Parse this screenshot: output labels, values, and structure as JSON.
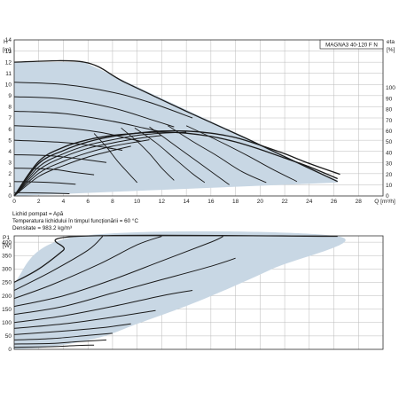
{
  "model_label": "MAGNA3 40-120 F N",
  "notes": [
    "Lichid pompat = Apă",
    "Temperatura lichidului în timpul funcționării = 60 °C",
    "Densitate = 983.2 kg/m³"
  ],
  "colors": {
    "fill": "#c8d7e4",
    "curve": "#1a1a1a",
    "grid": "#b9b9b9",
    "frame": "#333333"
  },
  "chart_data": [
    {
      "type": "line",
      "ylabel_lines": [
        "H",
        "[m]"
      ],
      "right_label_lines": [
        "eta",
        "[%]"
      ],
      "xlabel": "Q [m³/h]",
      "xlim": [
        0,
        28
      ],
      "xticks": [
        0,
        2,
        4,
        6,
        8,
        10,
        12,
        14,
        16,
        18,
        20,
        22,
        24,
        26,
        28,
        30
      ],
      "ylim": [
        0,
        14
      ],
      "yticks": [
        0,
        1,
        2,
        3,
        4,
        5,
        6,
        7,
        8,
        9,
        10,
        11,
        12,
        13,
        14
      ],
      "eta_ticks": [
        0,
        10,
        20,
        30,
        40,
        50,
        60,
        70,
        80,
        90,
        100
      ],
      "operating_area": [
        [
          0,
          0
        ],
        [
          0,
          12
        ],
        [
          5.7,
          12
        ],
        [
          26.3,
          1.4
        ],
        [
          26.3,
          1.2
        ],
        [
          0,
          0
        ]
      ],
      "pump_curves": [
        {
          "points": [
            [
              0,
              12.0
            ],
            [
              5.7,
              12.0
            ],
            [
              9,
              10.2
            ],
            [
              14,
              7.6
            ],
            [
              18.8,
              5.2
            ],
            [
              23,
              3.0
            ],
            [
              26.3,
              1.3
            ]
          ]
        },
        {
          "points": [
            [
              0,
              10.2
            ],
            [
              4,
              10.0
            ],
            [
              8,
              9.3
            ],
            [
              11,
              8.4
            ],
            [
              14.5,
              7.0
            ]
          ]
        },
        {
          "points": [
            [
              0,
              8.9
            ],
            [
              4,
              8.7
            ],
            [
              8,
              7.9
            ],
            [
              11,
              6.9
            ],
            [
              13.0,
              6.2
            ]
          ]
        },
        {
          "points": [
            [
              0,
              7.6
            ],
            [
              4,
              7.4
            ],
            [
              8,
              6.7
            ],
            [
              10.5,
              6.1
            ],
            [
              11.8,
              5.8
            ]
          ]
        },
        {
          "points": [
            [
              0,
              6.3
            ],
            [
              4,
              6.1
            ],
            [
              7,
              5.7
            ],
            [
              9.5,
              5.1
            ],
            [
              10.3,
              4.9
            ]
          ]
        },
        {
          "points": [
            [
              0,
              5.0
            ],
            [
              4,
              4.8
            ],
            [
              6.5,
              4.5
            ],
            [
              8.8,
              4.1
            ]
          ]
        },
        {
          "points": [
            [
              0,
              3.7
            ],
            [
              3,
              3.6
            ],
            [
              5.5,
              3.3
            ],
            [
              7.5,
              3.0
            ]
          ]
        },
        {
          "points": [
            [
              0,
              2.5
            ],
            [
              3,
              2.4
            ],
            [
              5,
              2.1
            ],
            [
              6.5,
              1.9
            ]
          ]
        },
        {
          "points": [
            [
              0,
              1.3
            ],
            [
              3,
              1.2
            ],
            [
              5,
              1.05
            ]
          ]
        },
        {
          "points": [
            [
              0,
              0.3
            ],
            [
              3,
              0.25
            ],
            [
              4.5,
              0.2
            ]
          ]
        }
      ],
      "efficiency_curves": [
        {
          "points": [
            [
              0,
              0
            ],
            [
              2,
              32
            ],
            [
              4,
              45
            ],
            [
              6,
              52
            ],
            [
              8,
              56
            ],
            [
              10,
              58
            ],
            [
              12,
              59
            ],
            [
              14,
              58
            ],
            [
              16,
              55
            ],
            [
              18,
              50
            ],
            [
              20,
              43
            ],
            [
              22,
              35
            ],
            [
              24,
              27
            ],
            [
              26.3,
              16
            ]
          ]
        },
        {
          "points": [
            [
              0,
              0
            ],
            [
              2,
              30
            ],
            [
              4,
              42
            ],
            [
              6,
              50
            ],
            [
              8,
              55
            ],
            [
              10,
              58
            ],
            [
              12,
              60
            ],
            [
              14,
              60
            ],
            [
              16,
              58
            ],
            [
              18,
              54
            ],
            [
              20,
              47
            ],
            [
              22,
              39
            ],
            [
              24,
              30
            ],
            [
              26.5,
              20
            ]
          ]
        },
        {
          "points": [
            [
              0,
              0
            ],
            [
              2,
              27
            ],
            [
              4,
              39
            ],
            [
              6,
              47
            ],
            [
              8,
              52
            ],
            [
              10,
              56
            ],
            [
              12,
              58
            ],
            [
              14,
              59
            ]
          ]
        },
        {
          "points": [
            [
              0,
              0
            ],
            [
              2,
              24
            ],
            [
              4,
              36
            ],
            [
              6,
              44
            ],
            [
              8,
              49
            ],
            [
              10,
              53
            ],
            [
              12,
              56
            ]
          ]
        },
        {
          "points": [
            [
              0,
              0
            ],
            [
              2,
              21
            ],
            [
              4,
              32
            ],
            [
              6,
              40
            ],
            [
              8,
              46
            ],
            [
              10,
              50
            ],
            [
              11,
              52
            ]
          ]
        },
        {
          "points": [
            [
              0,
              0
            ],
            [
              2,
              18
            ],
            [
              4,
              28
            ],
            [
              6,
              36
            ],
            [
              8,
              42
            ],
            [
              9.5,
              46
            ]
          ]
        }
      ],
      "descending_curves": [
        {
          "points": [
            [
              8.7,
              6.1
            ],
            [
              10,
              4.9
            ],
            [
              11,
              3.8
            ],
            [
              12,
              2.5
            ],
            [
              13,
              1.4
            ]
          ]
        },
        {
          "points": [
            [
              9.8,
              6.1
            ],
            [
              11.5,
              4.8
            ],
            [
              13,
              3.4
            ],
            [
              14.5,
              2.0
            ],
            [
              15.5,
              1.2
            ]
          ]
        },
        {
          "points": [
            [
              11,
              6.2
            ],
            [
              13,
              4.6
            ],
            [
              15,
              3.0
            ],
            [
              16.5,
              1.8
            ],
            [
              17.5,
              1.0
            ]
          ]
        },
        {
          "points": [
            [
              12.5,
              6.3
            ],
            [
              14.5,
              4.9
            ],
            [
              16.5,
              3.6
            ],
            [
              18.5,
              2.2
            ],
            [
              20.5,
              1.2
            ]
          ]
        },
        {
          "points": [
            [
              14,
              6.3
            ],
            [
              16.5,
              5.0
            ],
            [
              19,
              3.6
            ],
            [
              21,
              2.4
            ],
            [
              23,
              1.3
            ]
          ]
        },
        {
          "points": [
            [
              6.5,
              5.6
            ],
            [
              7.5,
              4.4
            ],
            [
              8.5,
              3.0
            ],
            [
              9.5,
              1.8
            ],
            [
              10,
              1.2
            ]
          ]
        }
      ]
    },
    {
      "type": "line",
      "ylabel_lines": [
        "P1",
        "[W]"
      ],
      "xlim": [
        0,
        28
      ],
      "xticks": [
        0,
        2,
        4,
        6,
        8,
        10,
        12,
        14,
        16,
        18,
        20,
        22,
        24,
        26,
        28,
        30
      ],
      "ylim": [
        0,
        450
      ],
      "yticks": [
        0,
        50,
        100,
        150,
        200,
        250,
        300,
        350,
        400
      ],
      "operating_area": [
        [
          0,
          250
        ],
        [
          5.2,
          422
        ],
        [
          26.3,
          422
        ],
        [
          21,
          300
        ],
        [
          15,
          180
        ],
        [
          10,
          95
        ],
        [
          7,
          45
        ],
        [
          3,
          10
        ],
        [
          0,
          0
        ]
      ],
      "power_curves": [
        {
          "points": [
            [
              0,
              250
            ],
            [
              2,
              300
            ],
            [
              4,
              370
            ],
            [
              5.2,
              422
            ],
            [
              26.3,
              422
            ]
          ]
        },
        {
          "points": [
            [
              0,
              220
            ],
            [
              3,
              290
            ],
            [
              6,
              370
            ],
            [
              7.2,
              422
            ]
          ]
        },
        {
          "points": [
            [
              0,
              190
            ],
            [
              3,
              240
            ],
            [
              7,
              320
            ],
            [
              10,
              390
            ],
            [
              12,
              422
            ]
          ]
        },
        {
          "points": [
            [
              0,
              160
            ],
            [
              4,
              200
            ],
            [
              8,
              260
            ],
            [
              12,
              330
            ],
            [
              16,
              400
            ],
            [
              17,
              422
            ]
          ]
        },
        {
          "points": [
            [
              0,
              130
            ],
            [
              4,
              160
            ],
            [
              8,
              210
            ],
            [
              12,
              260
            ],
            [
              16,
              310
            ],
            [
              18,
              340
            ]
          ]
        },
        {
          "points": [
            [
              0,
              100
            ],
            [
              4,
              125
            ],
            [
              8,
              160
            ],
            [
              12,
              200
            ],
            [
              14.5,
              220
            ]
          ]
        },
        {
          "points": [
            [
              0,
              78
            ],
            [
              4,
              95
            ],
            [
              8,
              120
            ],
            [
              11.5,
              145
            ]
          ]
        },
        {
          "points": [
            [
              0,
              55
            ],
            [
              4,
              68
            ],
            [
              7,
              80
            ],
            [
              9.5,
              95
            ]
          ]
        },
        {
          "points": [
            [
              0,
              35
            ],
            [
              3,
              40
            ],
            [
              6,
              52
            ],
            [
              8,
              60
            ]
          ]
        },
        {
          "points": [
            [
              0,
              20
            ],
            [
              3,
              22
            ],
            [
              5,
              28
            ],
            [
              7.5,
              35
            ]
          ]
        },
        {
          "points": [
            [
              0,
              8
            ],
            [
              3,
              10
            ],
            [
              5,
              14
            ],
            [
              6.5,
              16
            ]
          ]
        }
      ]
    }
  ]
}
